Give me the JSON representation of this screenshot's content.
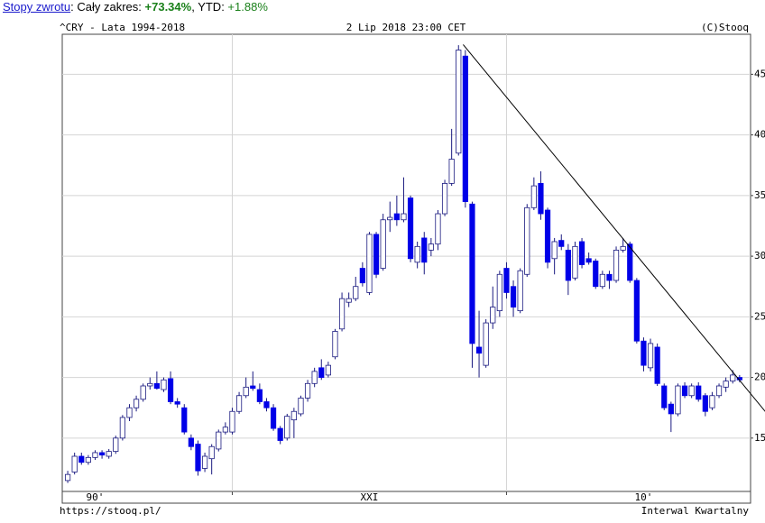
{
  "header": {
    "parts": [
      "Stopy zwrotu",
      ": Cały zakres: ",
      "+73.34%",
      ", YTD: ",
      "+1.88%"
    ]
  },
  "chart_data": {
    "type": "candlestick",
    "title": "^CRY - Lata 1994-2018",
    "date": "2 Lip 2018 23:00 CET",
    "copyright": "(C)Stooq",
    "source": "https://stooq.pl/",
    "interval": "Interwal Kwartalny",
    "x": [
      1994,
      1994.25,
      1994.5,
      1994.75,
      1995,
      1995.25,
      1995.5,
      1995.75,
      1996,
      1996.25,
      1996.5,
      1996.75,
      1997,
      1997.25,
      1997.5,
      1997.75,
      1998,
      1998.25,
      1998.5,
      1998.75,
      1999,
      1999.25,
      1999.5,
      1999.75,
      2000,
      2000.25,
      2000.5,
      2000.75,
      2001,
      2001.25,
      2001.5,
      2001.75,
      2002,
      2002.25,
      2002.5,
      2002.75,
      2003,
      2003.25,
      2003.5,
      2003.75,
      2004,
      2004.25,
      2004.5,
      2004.75,
      2005,
      2005.25,
      2005.5,
      2005.75,
      2006,
      2006.25,
      2006.5,
      2006.75,
      2007,
      2007.25,
      2007.5,
      2007.75,
      2008,
      2008.25,
      2008.5,
      2008.75,
      2009,
      2009.25,
      2009.5,
      2009.75,
      2010,
      2010.25,
      2010.5,
      2010.75,
      2011,
      2011.25,
      2011.5,
      2011.75,
      2012,
      2012.25,
      2012.5,
      2012.75,
      2013,
      2013.25,
      2013.5,
      2013.75,
      2014,
      2014.25,
      2014.5,
      2014.75,
      2015,
      2015.25,
      2015.5,
      2015.75,
      2016,
      2016.25,
      2016.5,
      2016.75,
      2017,
      2017.25,
      2017.5,
      2017.75,
      2018,
      2018.25,
      2018.5
    ],
    "ohlc": [
      [
        11.5,
        12.3,
        11.3,
        12.0
      ],
      [
        12.2,
        13.8,
        12.0,
        13.5
      ],
      [
        13.5,
        13.8,
        12.8,
        13.0
      ],
      [
        13.0,
        13.6,
        12.8,
        13.4
      ],
      [
        13.4,
        14.0,
        13.2,
        13.8
      ],
      [
        13.8,
        14.0,
        13.3,
        13.6
      ],
      [
        13.5,
        14.1,
        13.3,
        13.9
      ],
      [
        13.9,
        15.2,
        13.7,
        15.0
      ],
      [
        15.0,
        16.9,
        14.8,
        16.7
      ],
      [
        16.7,
        17.8,
        16.4,
        17.5
      ],
      [
        17.5,
        18.5,
        17.2,
        18.2
      ],
      [
        18.2,
        19.5,
        18.0,
        19.3
      ],
      [
        19.3,
        20.0,
        19.0,
        19.5
      ],
      [
        19.5,
        20.5,
        19.0,
        19.1
      ],
      [
        19.0,
        20.0,
        18.8,
        19.8
      ],
      [
        19.9,
        20.5,
        17.8,
        18.0
      ],
      [
        18.0,
        18.3,
        17.5,
        17.8
      ],
      [
        17.5,
        17.8,
        15.3,
        15.5
      ],
      [
        15.0,
        15.3,
        14.0,
        14.3
      ],
      [
        14.5,
        14.8,
        11.9,
        12.3
      ],
      [
        12.5,
        13.8,
        12.2,
        13.5
      ],
      [
        13.3,
        14.5,
        12.0,
        14.3
      ],
      [
        14.1,
        15.7,
        13.9,
        15.5
      ],
      [
        15.5,
        16.3,
        15.3,
        15.9
      ],
      [
        15.5,
        17.5,
        15.3,
        17.2
      ],
      [
        17.2,
        18.8,
        17.0,
        18.5
      ],
      [
        18.5,
        20.0,
        18.3,
        19.2
      ],
      [
        19.3,
        20.5,
        18.9,
        19.1
      ],
      [
        19.0,
        19.5,
        17.8,
        18.0
      ],
      [
        18.0,
        18.3,
        17.2,
        17.5
      ],
      [
        17.5,
        17.8,
        15.6,
        15.8
      ],
      [
        15.8,
        16.0,
        14.5,
        14.8
      ],
      [
        15.0,
        17.0,
        14.8,
        16.8
      ],
      [
        16.5,
        17.5,
        15.0,
        17.2
      ],
      [
        17.0,
        18.5,
        16.8,
        18.3
      ],
      [
        18.3,
        19.8,
        18.0,
        19.5
      ],
      [
        19.5,
        20.8,
        19.2,
        20.5
      ],
      [
        20.8,
        21.5,
        19.8,
        20.0
      ],
      [
        20.2,
        21.3,
        20.0,
        21.0
      ],
      [
        21.7,
        24.0,
        21.5,
        23.8
      ],
      [
        24.0,
        27.0,
        23.8,
        26.5
      ],
      [
        26.2,
        27.0,
        25.8,
        26.5
      ],
      [
        26.5,
        28.3,
        26.3,
        27.5
      ],
      [
        29.0,
        29.5,
        27.5,
        27.8
      ],
      [
        27.0,
        32.0,
        26.8,
        31.8
      ],
      [
        31.8,
        32.0,
        28.2,
        28.5
      ],
      [
        29.0,
        33.5,
        28.8,
        33.0
      ],
      [
        33.0,
        34.5,
        32.0,
        33.2
      ],
      [
        33.5,
        35.0,
        32.5,
        33.0
      ],
      [
        33.0,
        36.5,
        32.8,
        33.5
      ],
      [
        34.8,
        35.0,
        29.5,
        29.8
      ],
      [
        29.5,
        31.2,
        29.0,
        30.8
      ],
      [
        31.5,
        32.0,
        28.5,
        29.5
      ],
      [
        30.5,
        31.5,
        30.0,
        31.0
      ],
      [
        31.0,
        33.8,
        30.5,
        33.5
      ],
      [
        33.5,
        36.3,
        33.3,
        36.0
      ],
      [
        36.0,
        40.5,
        35.8,
        38.0
      ],
      [
        38.5,
        47.4,
        38.3,
        47.0
      ],
      [
        46.5,
        47.0,
        34.0,
        34.5
      ],
      [
        34.3,
        34.5,
        20.8,
        22.8
      ],
      [
        22.5,
        25.5,
        20.0,
        22.0
      ],
      [
        21.0,
        24.8,
        20.8,
        24.5
      ],
      [
        24.5,
        27.5,
        24.0,
        25.8
      ],
      [
        25.5,
        28.8,
        25.0,
        28.5
      ],
      [
        29.0,
        29.5,
        26.5,
        27.0
      ],
      [
        27.5,
        28.0,
        25.0,
        25.8
      ],
      [
        25.5,
        29.0,
        25.3,
        28.8
      ],
      [
        28.5,
        34.3,
        28.3,
        34.0
      ],
      [
        34.0,
        36.5,
        33.8,
        35.8
      ],
      [
        36.0,
        37.0,
        33.0,
        33.5
      ],
      [
        33.8,
        34.0,
        29.0,
        29.5
      ],
      [
        29.8,
        31.5,
        28.5,
        31.2
      ],
      [
        31.3,
        31.8,
        30.5,
        30.8
      ],
      [
        30.5,
        31.0,
        26.8,
        28.0
      ],
      [
        28.2,
        31.2,
        28.0,
        30.8
      ],
      [
        31.2,
        31.5,
        29.0,
        29.3
      ],
      [
        29.8,
        30.3,
        29.3,
        29.5
      ],
      [
        29.6,
        29.8,
        27.3,
        27.5
      ],
      [
        27.5,
        28.8,
        27.3,
        28.5
      ],
      [
        28.5,
        28.8,
        27.3,
        28.0
      ],
      [
        28.0,
        30.8,
        27.8,
        30.5
      ],
      [
        30.5,
        31.5,
        30.3,
        30.8
      ],
      [
        31.0,
        31.2,
        27.8,
        28.0
      ],
      [
        28.0,
        28.2,
        22.8,
        23.0
      ],
      [
        23.0,
        23.3,
        20.5,
        21.0
      ],
      [
        20.8,
        23.2,
        20.5,
        22.8
      ],
      [
        22.5,
        22.8,
        19.3,
        19.5
      ],
      [
        19.3,
        19.5,
        17.3,
        17.5
      ],
      [
        17.8,
        18.0,
        15.5,
        17.0
      ],
      [
        17.0,
        19.5,
        16.8,
        19.3
      ],
      [
        19.3,
        19.6,
        18.3,
        18.5
      ],
      [
        18.5,
        19.5,
        18.3,
        19.3
      ],
      [
        19.3,
        19.6,
        18.0,
        18.2
      ],
      [
        18.5,
        18.7,
        16.8,
        17.2
      ],
      [
        17.5,
        18.8,
        17.3,
        18.5
      ],
      [
        18.5,
        19.5,
        18.3,
        19.3
      ],
      [
        19.2,
        20.0,
        18.8,
        19.7
      ],
      [
        19.7,
        20.6,
        19.5,
        20.2
      ],
      [
        20.0,
        20.2,
        19.6,
        19.8
      ]
    ],
    "up_color": "#ffffff",
    "down_color": "#0000e8",
    "edge_color": "#1a1a80",
    "xlim": [
      1993.8,
      2018.9
    ],
    "xgrid": [
      2000,
      2010
    ],
    "xticks": [
      {
        "value": 1995,
        "label": "90'"
      },
      {
        "value": 2005,
        "label": "XXI"
      },
      {
        "value": 2015,
        "label": "10'"
      }
    ],
    "ylim": [
      10.6,
      48.3
    ],
    "yticks": [
      15,
      20,
      25,
      30,
      35,
      40,
      45
    ],
    "grid": true,
    "trendline": {
      "x": [
        2008.42,
        2019.44
      ],
      "y": [
        47.45,
        17.18
      ]
    }
  }
}
